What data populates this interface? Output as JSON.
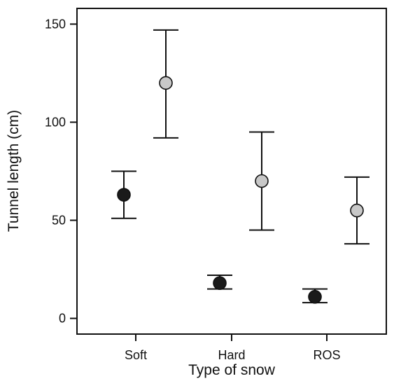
{
  "chart_data": {
    "type": "scatter",
    "title": "",
    "xlabel": "Type of snow",
    "ylabel": "Tunnel length (cm)",
    "categories": [
      "Soft",
      "Hard",
      "ROS"
    ],
    "ylim": [
      -8,
      158
    ],
    "yticks": [
      0,
      50,
      100,
      150
    ],
    "grid": false,
    "legend": "none",
    "series": [
      {
        "marker_color": "#1a1a1a",
        "values": [
          63,
          18,
          11
        ],
        "error_low": [
          51,
          15,
          8
        ],
        "error_high": [
          75,
          22,
          15
        ]
      },
      {
        "marker_color": "#c8c8c8",
        "values": [
          120,
          70,
          55
        ],
        "error_low": [
          92,
          45,
          38
        ],
        "error_high": [
          147,
          95,
          72
        ]
      }
    ]
  }
}
